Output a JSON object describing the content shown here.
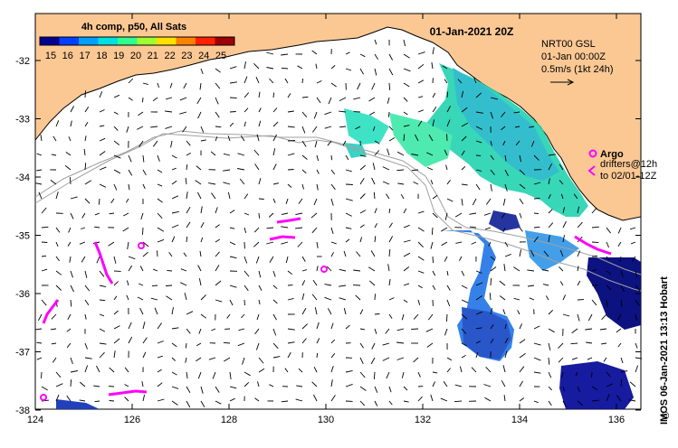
{
  "map": {
    "title": "4h comp, p50, All Sats",
    "date": "01-Jan-2021 20Z",
    "colorbar": {
      "ticks": [
        "15",
        "16",
        "17",
        "18",
        "19",
        "20",
        "21",
        "22",
        "23",
        "24",
        "25"
      ],
      "colors": [
        "#00008f",
        "#0040ff",
        "#00a0ff",
        "#00e0e0",
        "#30ff90",
        "#a0ff30",
        "#ffe000",
        "#ff8000",
        "#ff2000",
        "#a00000"
      ]
    },
    "lat_ticks": [
      "-32",
      "-33",
      "-34",
      "-35",
      "-36",
      "-37",
      "-38"
    ],
    "lon_ticks": [
      "124",
      "126",
      "128",
      "130",
      "132",
      "134",
      "136"
    ],
    "current_legend": {
      "line1": "NRT00 GSL",
      "line2": "01-Jan 00:00Z",
      "line3": "0.5m/s (1kt 24h)"
    },
    "argo_legend": {
      "argo_label": "Argo",
      "drifter_line1": "drifters@12h",
      "drifter_line2": "to 02/01-12Z"
    },
    "attribution": "IMOS 06-Jan-2021 13:13 Hobart",
    "copyright": "©",
    "colors": {
      "land": "#fbc894",
      "drifter": "#ff00ff",
      "bathymetry": "#a0a0a0"
    }
  }
}
